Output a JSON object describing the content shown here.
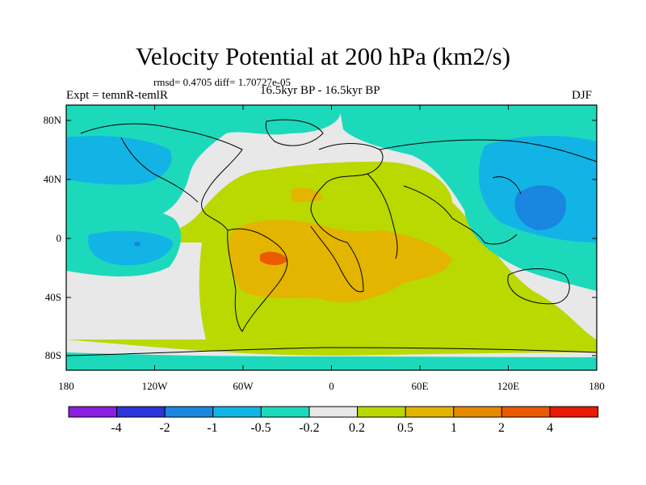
{
  "title": "Velocity Potential at 200 hPa (km2/s)",
  "stats": "rmsd= 0.4705 diff= 1.70727e-05",
  "experiment": "Expt = temnR-temlR",
  "period": "16.5kyr BP - 16.5kyr BP",
  "season": "DJF",
  "lat_labels": [
    "80N",
    "40N",
    "0",
    "40S",
    "80S"
  ],
  "lon_labels": [
    "180",
    "120W",
    "60W",
    "0",
    "60E",
    "120E",
    "180"
  ],
  "colorbar": {
    "colors": [
      "#8b1fe0",
      "#2b35d9",
      "#1a86e0",
      "#12b4e6",
      "#1cd9bb",
      "#e8e8e8",
      "#b9d900",
      "#e3b400",
      "#e68a00",
      "#ea5a00",
      "#e81a00"
    ],
    "labels": [
      "-4",
      "-2",
      "-1",
      "-0.5",
      "-0.2",
      "0.2",
      "0.5",
      "1",
      "2",
      "4"
    ]
  }
}
